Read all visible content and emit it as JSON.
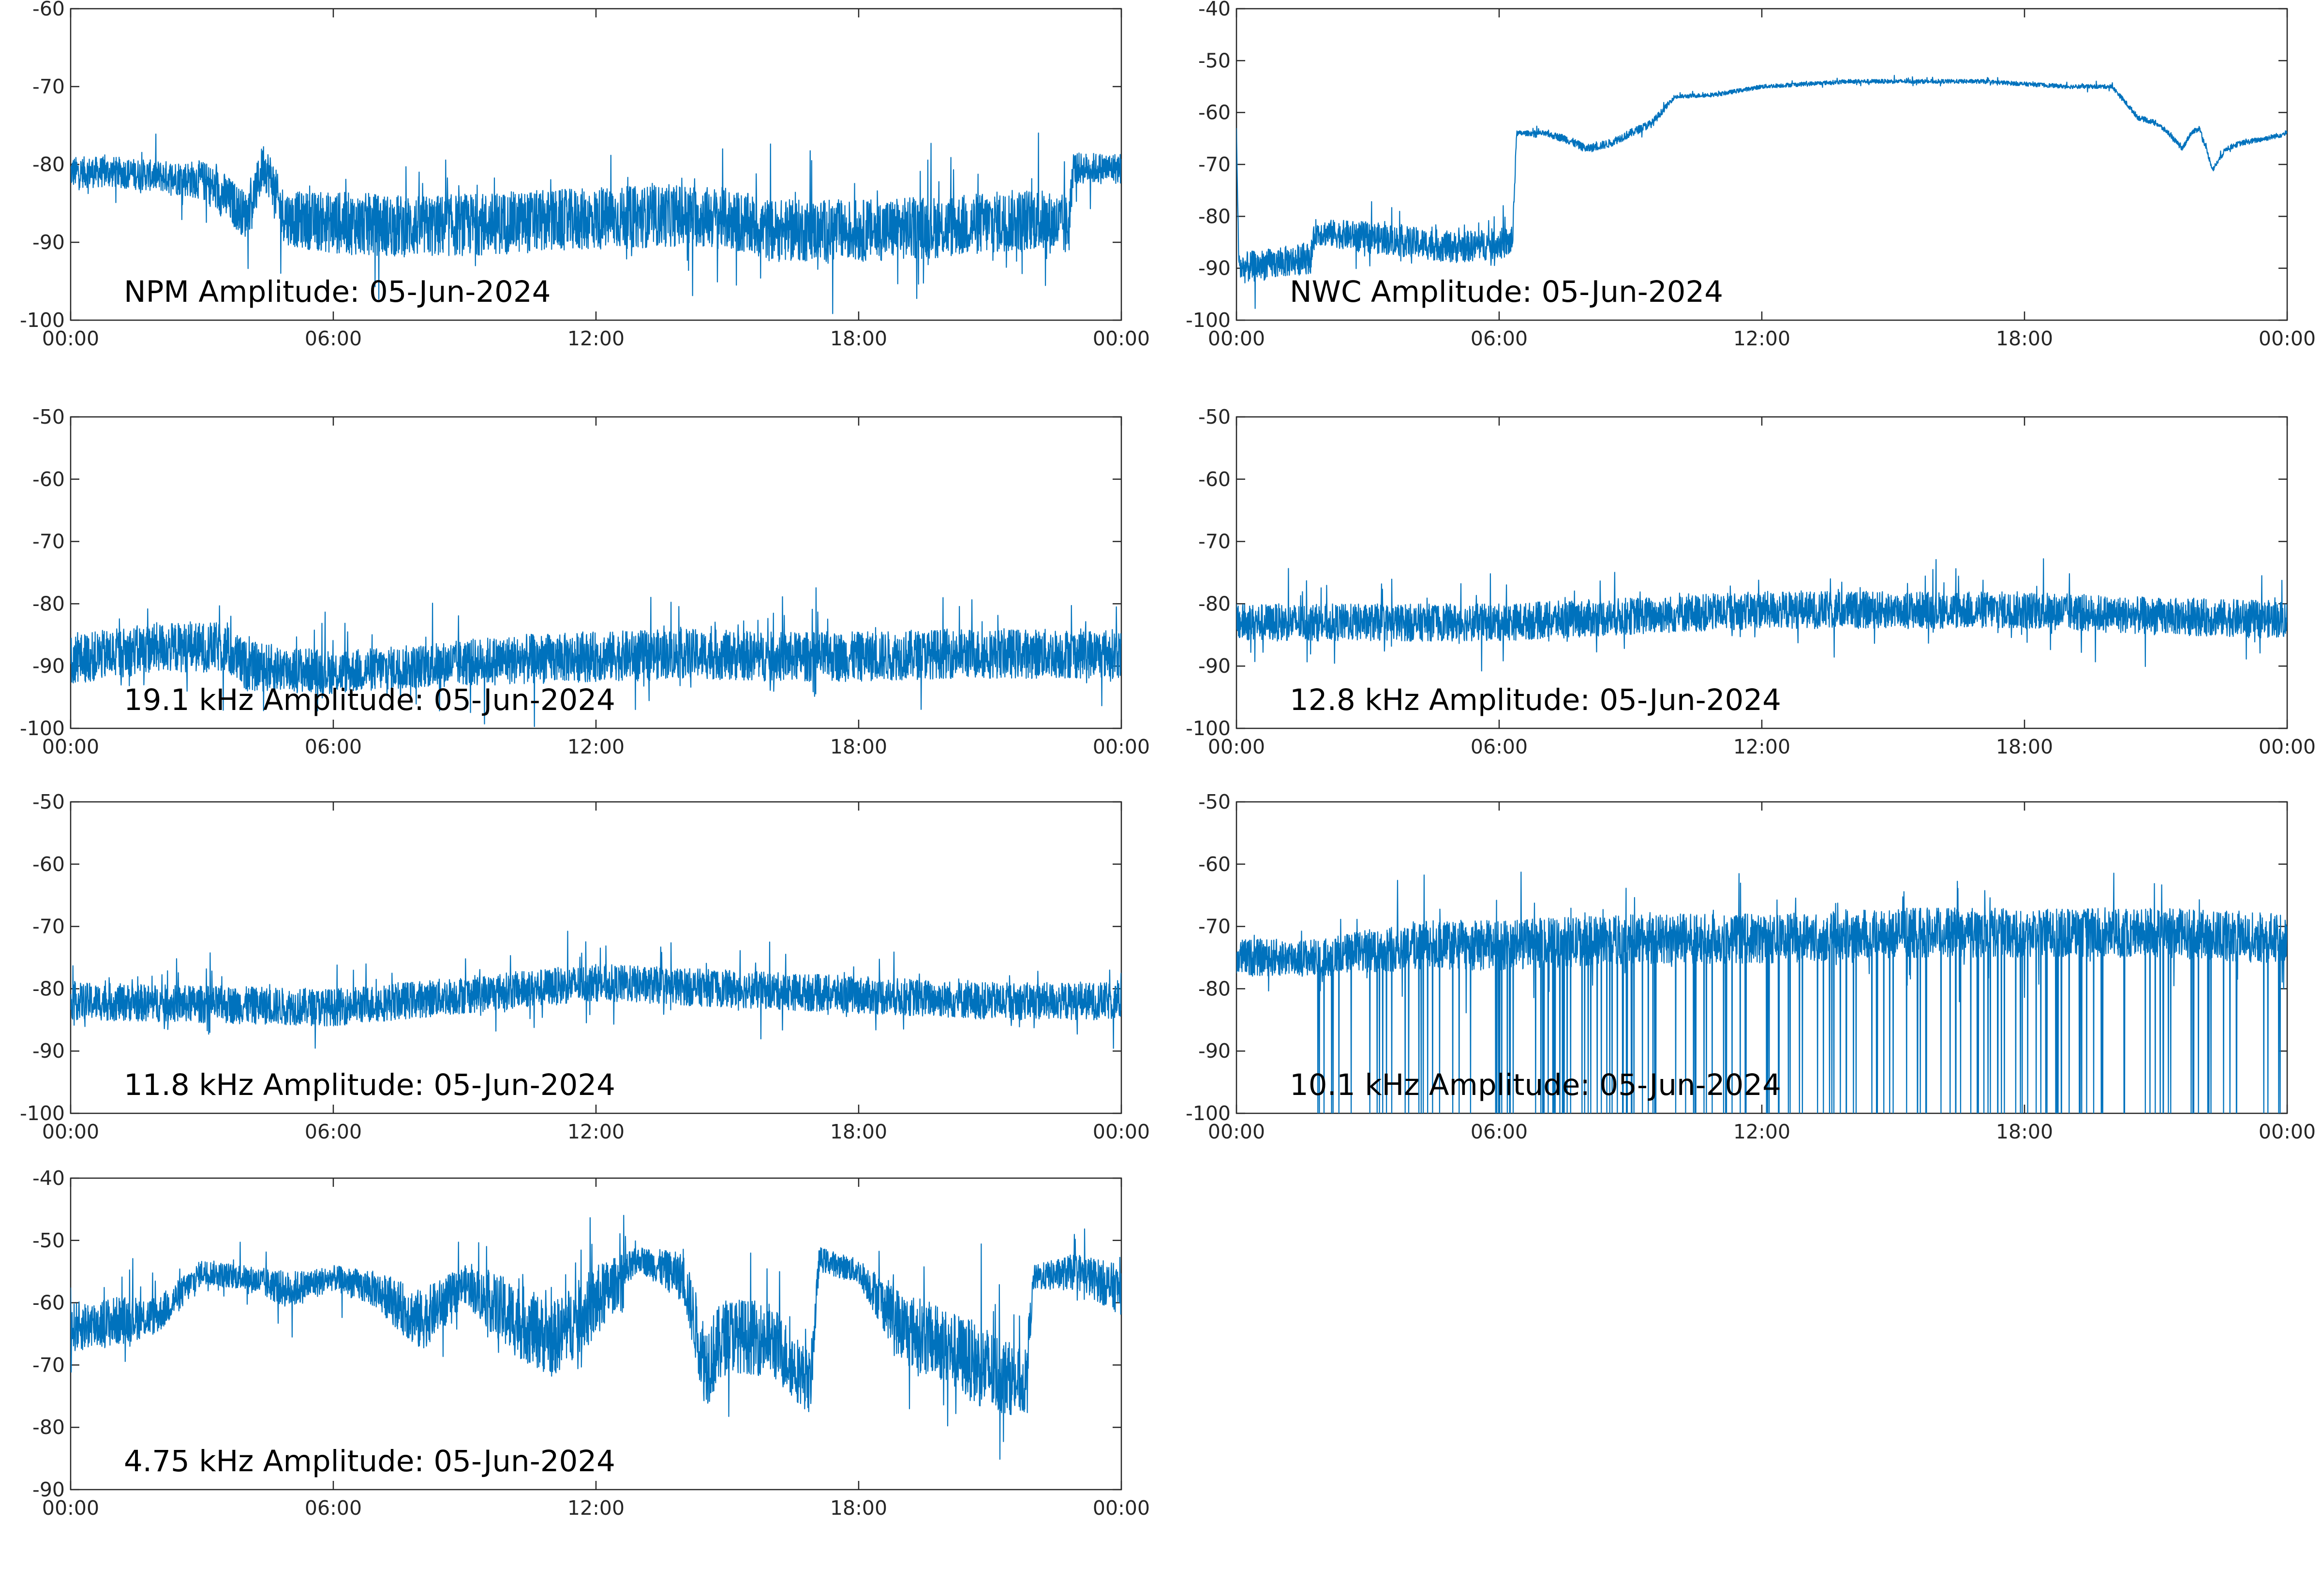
{
  "colors": {
    "series": "#0072bd",
    "axes": "#262626",
    "background": "#ffffff"
  },
  "chart_data": [
    {
      "type": "line",
      "title": "NPM Amplitude: 05-Jun-2024",
      "xlabel": "",
      "ylabel": "",
      "x_ticks": [
        "00:00",
        "06:00",
        "12:00",
        "18:00",
        "00:00"
      ],
      "xlim_hours": [
        0,
        24
      ],
      "ylim": [
        -100,
        -60
      ],
      "y_ticks": [
        -60,
        -70,
        -80,
        -90,
        -100
      ],
      "grid": false,
      "series": [
        {
          "x_hours": [
            0,
            1,
            2,
            3,
            3.5,
            4,
            4.2,
            4.4,
            4.6,
            4.8,
            5,
            6,
            8,
            10,
            12,
            14,
            15,
            16,
            18,
            20,
            22,
            22.8,
            22.9,
            24
          ],
          "values": [
            -81,
            -81,
            -81.5,
            -82,
            -84,
            -86.5,
            -84,
            -80,
            -82,
            -86,
            -87,
            -87.5,
            -88,
            -87.5,
            -87,
            -86.5,
            -87,
            -88.5,
            -88.5,
            -88,
            -87,
            -88,
            -80.5,
            -80.5
          ],
          "noise": [
            2,
            2,
            2,
            2.5,
            3,
            3,
            3,
            3,
            3,
            3.5,
            3.5,
            4,
            4,
            4,
            4,
            4,
            4,
            4,
            4,
            4,
            4,
            4,
            2,
            2
          ]
        }
      ]
    },
    {
      "type": "line",
      "title": "NWC Amplitude: 05-Jun-2024",
      "xlabel": "",
      "ylabel": "",
      "x_ticks": [
        "00:00",
        "06:00",
        "12:00",
        "18:00",
        "00:00"
      ],
      "xlim_hours": [
        0,
        24
      ],
      "ylim": [
        -100,
        -40
      ],
      "y_ticks": [
        -40,
        -50,
        -60,
        -70,
        -80,
        -90,
        -100
      ],
      "grid": false,
      "series": [
        {
          "x_hours": [
            0,
            0.05,
            0.1,
            1.7,
            1.8,
            3,
            4,
            5,
            6.3,
            6.4,
            6.5,
            7,
            7.5,
            8,
            8.5,
            9,
            9.5,
            10,
            11,
            12,
            14,
            16,
            17,
            18,
            19,
            20,
            20.3,
            20.6,
            21,
            21.3,
            21.6,
            21.8,
            22,
            22.3,
            22.6,
            22.9,
            23.2,
            23.5,
            24
          ],
          "values": [
            -63,
            -88,
            -90,
            -88,
            -83,
            -84,
            -85,
            -86,
            -85,
            -64,
            -64,
            -64,
            -65,
            -67,
            -66,
            -64,
            -62,
            -57,
            -56.5,
            -55,
            -54,
            -54,
            -54,
            -54.5,
            -55,
            -55,
            -58,
            -61,
            -62,
            -64,
            -67,
            -64,
            -63,
            -71,
            -67,
            -66,
            -65.5,
            -65,
            -64
          ],
          "noise": [
            0,
            3,
            3,
            3,
            2.5,
            3,
            3,
            3,
            3,
            0.5,
            0.5,
            0.5,
            0.8,
            0.8,
            0.8,
            0.8,
            0.8,
            0.4,
            0.4,
            0.4,
            0.4,
            0.4,
            0.4,
            0.4,
            0.4,
            0.4,
            0.5,
            0.5,
            0.5,
            0.5,
            0.5,
            0.5,
            0.5,
            0.5,
            0.5,
            0.5,
            0.5,
            0.5,
            0.5
          ]
        }
      ]
    },
    {
      "type": "line",
      "title": "19.1 kHz Amplitude: 05-Jun-2024",
      "xlabel": "",
      "ylabel": "",
      "x_ticks": [
        "00:00",
        "06:00",
        "12:00",
        "18:00",
        "00:00"
      ],
      "xlim_hours": [
        0,
        24
      ],
      "ylim": [
        -100,
        -50
      ],
      "y_ticks": [
        -50,
        -60,
        -70,
        -80,
        -90,
        -100
      ],
      "grid": false,
      "series": [
        {
          "x_hours": [
            0,
            2,
            3.5,
            4,
            6,
            8,
            10,
            12,
            14,
            16,
            18,
            20,
            22,
            24
          ],
          "values": [
            -89,
            -87,
            -87,
            -90,
            -91,
            -90,
            -89,
            -88.5,
            -88,
            -88.5,
            -88.5,
            -88,
            -88,
            -88
          ],
          "noise": [
            4,
            4,
            4,
            4,
            3.5,
            3.5,
            4,
            4,
            4,
            4,
            4,
            4,
            4,
            4
          ]
        }
      ]
    },
    {
      "type": "line",
      "title": "12.8 kHz Amplitude: 05-Jun-2024",
      "xlabel": "",
      "ylabel": "",
      "x_ticks": [
        "00:00",
        "06:00",
        "12:00",
        "18:00",
        "00:00"
      ],
      "xlim_hours": [
        0,
        24
      ],
      "ylim": [
        -100,
        -50
      ],
      "y_ticks": [
        -50,
        -60,
        -70,
        -80,
        -90,
        -100
      ],
      "grid": false,
      "series": [
        {
          "x_hours": [
            0,
            3,
            6,
            9,
            12,
            15,
            18,
            21,
            24
          ],
          "values": [
            -83,
            -83,
            -83,
            -82,
            -81,
            -81,
            -81,
            -82,
            -82.5
          ],
          "noise": [
            3,
            3,
            3,
            3,
            3,
            3,
            3,
            3,
            3
          ]
        }
      ]
    },
    {
      "type": "line",
      "title": "11.8 kHz Amplitude: 05-Jun-2024",
      "xlabel": "",
      "ylabel": "",
      "x_ticks": [
        "00:00",
        "06:00",
        "12:00",
        "18:00",
        "00:00"
      ],
      "xlim_hours": [
        0,
        24
      ],
      "ylim": [
        -100,
        -50
      ],
      "y_ticks": [
        -50,
        -60,
        -70,
        -80,
        -90,
        -100
      ],
      "grid": false,
      "series": [
        {
          "x_hours": [
            0,
            3,
            6,
            9,
            12,
            15,
            18,
            21,
            24
          ],
          "values": [
            -82,
            -82.5,
            -83,
            -81,
            -79,
            -80,
            -81,
            -82,
            -82
          ],
          "noise": [
            3,
            3,
            3,
            3,
            3,
            3,
            3,
            3,
            3
          ]
        }
      ]
    },
    {
      "type": "line",
      "title": "10.1 kHz Amplitude: 05-Jun-2024",
      "xlabel": "",
      "ylabel": "",
      "x_ticks": [
        "00:00",
        "06:00",
        "12:00",
        "18:00",
        "00:00"
      ],
      "xlim_hours": [
        0,
        24
      ],
      "ylim": [
        -100,
        -50
      ],
      "y_ticks": [
        -50,
        -60,
        -70,
        -80,
        -90,
        -100
      ],
      "grid": false,
      "series": [
        {
          "x_hours": [
            0,
            2,
            4,
            6,
            9,
            12,
            15,
            18,
            21,
            24
          ],
          "values": [
            -75,
            -75,
            -73,
            -73,
            -72,
            -72,
            -71,
            -71,
            -71,
            -72
          ],
          "noise": [
            3,
            3,
            4,
            4,
            4,
            4,
            4,
            4,
            4,
            4
          ],
          "dropouts_from_hours": 1.8
        }
      ]
    },
    {
      "type": "line",
      "title": "4.75 kHz Amplitude: 05-Jun-2024",
      "xlabel": "",
      "ylabel": "",
      "x_ticks": [
        "00:00",
        "06:00",
        "12:00",
        "18:00",
        "00:00"
      ],
      "xlim_hours": [
        0,
        24
      ],
      "ylim": [
        -90,
        -40
      ],
      "y_ticks": [
        -40,
        -50,
        -60,
        -70,
        -80,
        -90
      ],
      "grid": false,
      "series": [
        {
          "x_hours": [
            0,
            1,
            2,
            2.6,
            3,
            4,
            5,
            6,
            7,
            8,
            9,
            10,
            11,
            12,
            13,
            14,
            14.5,
            15,
            16,
            16.9,
            17.1,
            18,
            19,
            20,
            21,
            21.8,
            22,
            23,
            24
          ],
          "values": [
            -64,
            -63,
            -62,
            -58,
            -55,
            -56,
            -58,
            -56,
            -58,
            -63,
            -57,
            -62,
            -66,
            -60,
            -53,
            -56,
            -70,
            -65,
            -66,
            -73,
            -53,
            -55,
            -64,
            -67,
            -71,
            -73,
            -56,
            -55,
            -58
          ],
          "noise": [
            4,
            4,
            3,
            2.5,
            2,
            2,
            3,
            2,
            3,
            5,
            3,
            6,
            6,
            6,
            2,
            4,
            7,
            6,
            6,
            5,
            2,
            2,
            6,
            6,
            7,
            5,
            2,
            3,
            4
          ]
        }
      ]
    }
  ]
}
